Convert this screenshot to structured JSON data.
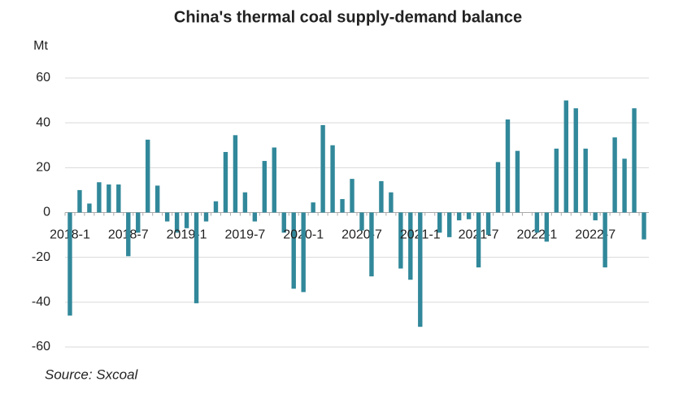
{
  "chart_data": {
    "type": "bar",
    "title": "China's thermal coal supply-demand balance",
    "y_label": "Mt",
    "source": "Source: Sxcoal",
    "categories": [
      "2018-1",
      null,
      null,
      null,
      null,
      null,
      "2018-7",
      null,
      null,
      null,
      null,
      null,
      "2019-1",
      null,
      null,
      null,
      null,
      null,
      "2019-7",
      null,
      null,
      null,
      null,
      null,
      "2020-1",
      null,
      null,
      null,
      null,
      null,
      "2020-7",
      null,
      null,
      null,
      null,
      null,
      "2021-1",
      null,
      null,
      null,
      null,
      null,
      "2021-7",
      null,
      null,
      null,
      null,
      null,
      "2022-1",
      null,
      null,
      null,
      null,
      null,
      "2022-7",
      null,
      null,
      null,
      null,
      null
    ],
    "values": [
      -46,
      10,
      4,
      13.5,
      12.5,
      12.5,
      -19.5,
      -9,
      32.5,
      12,
      -4,
      -9,
      -7,
      -40.5,
      -4,
      5,
      27,
      34.5,
      9,
      -4,
      23,
      29,
      -9,
      -34,
      -35.5,
      4.5,
      39,
      30,
      6,
      15,
      -8,
      -28.5,
      14,
      9,
      -25,
      -30,
      -51,
      0,
      -9,
      -11,
      -3.5,
      -3,
      -24.5,
      -10,
      22.5,
      41.5,
      27.5,
      0,
      -9,
      -13,
      28.5,
      50,
      46.5,
      28.5,
      -3.5,
      -24.5,
      33.5,
      24,
      46.5,
      -12
    ],
    "color": "#31889a",
    "ylim": [
      -60,
      60
    ],
    "yticks": [
      -60,
      -40,
      -20,
      0,
      20,
      40,
      60
    ],
    "grid": true
  }
}
